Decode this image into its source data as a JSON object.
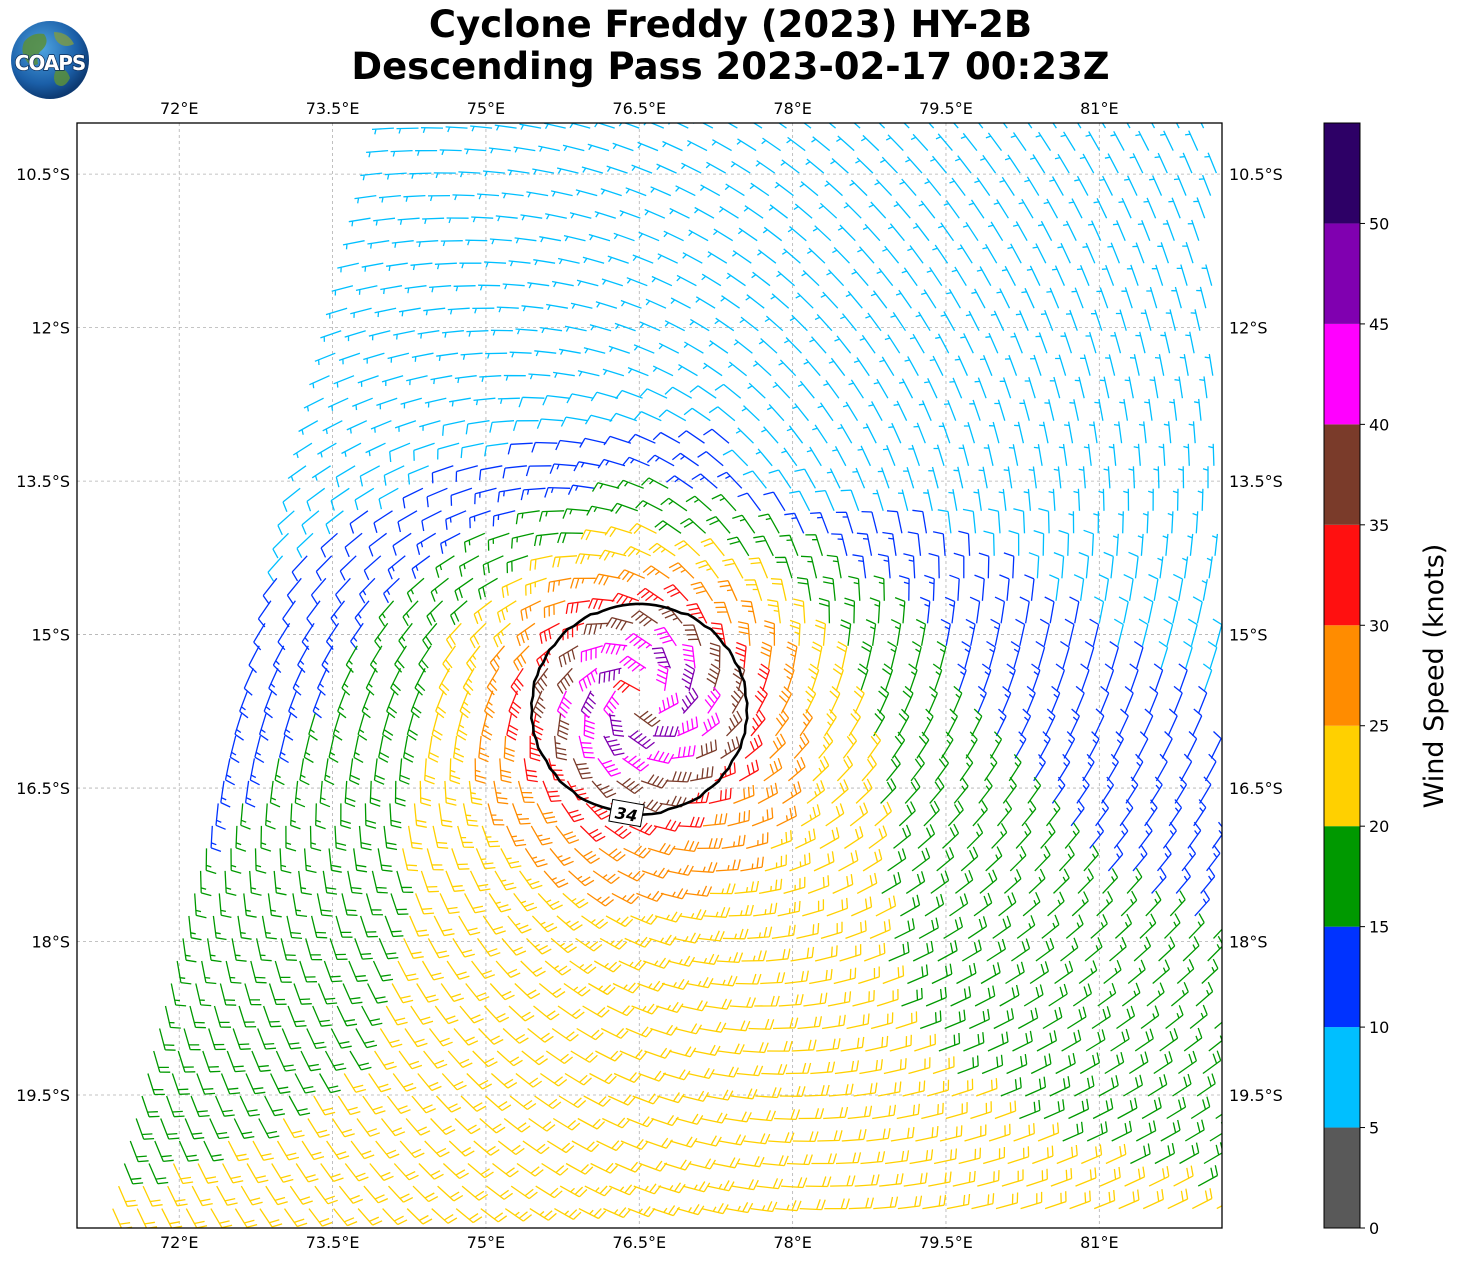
{
  "title": {
    "line1": "Cyclone Freddy (2023) HY-2B",
    "line2": "Descending Pass 2023-02-17 00:23Z"
  },
  "logo": {
    "text": "COAPS",
    "icon": "globe-logo-icon"
  },
  "map": {
    "lon_range": [
      71.0,
      82.2
    ],
    "lat_range": [
      -20.8,
      -10.0
    ],
    "lon_ticks": [
      "72°E",
      "73.5°E",
      "75°E",
      "76.5°E",
      "78°E",
      "79.5°E",
      "81°E"
    ],
    "lat_ticks": [
      "10.5°S",
      "12°S",
      "13.5°S",
      "15°S",
      "16.5°S",
      "18°S",
      "19.5°S"
    ],
    "gridlines": true,
    "swath_edge_left": [
      [
        74.0,
        -10.05
      ],
      [
        71.2,
        -20.8
      ]
    ],
    "storm_center": [
      76.5,
      -15.6
    ],
    "contour_label": "34",
    "contour_kts": 34
  },
  "colorbar": {
    "label": "Wind Speed (knots)",
    "ticks": [
      "0",
      "5",
      "10",
      "15",
      "20",
      "25",
      "30",
      "35",
      "40",
      "45",
      "50"
    ],
    "range": [
      0,
      55
    ],
    "colors": [
      "#595959",
      "#00bfff",
      "#0033ff",
      "#009900",
      "#ffd000",
      "#ff8c00",
      "#ff1010",
      "#7a3b2a",
      "#ff00ff",
      "#8000b0",
      "#2d0066"
    ]
  }
}
